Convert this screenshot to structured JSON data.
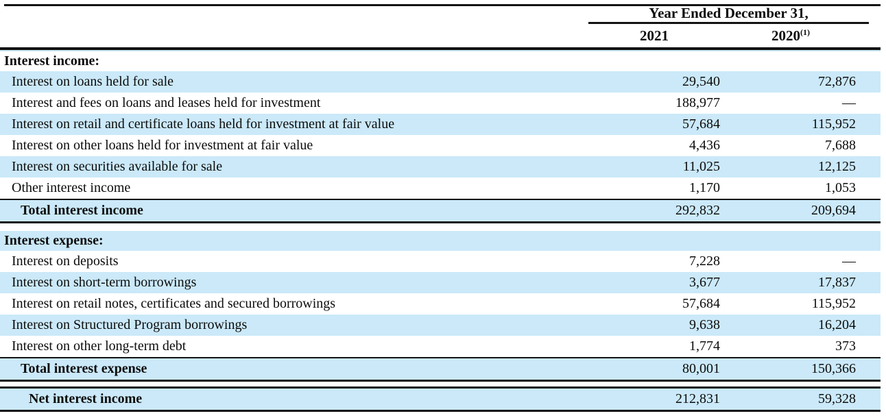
{
  "table": {
    "header": {
      "period_label": "Year Ended December 31,",
      "col_2021": "2021",
      "col_2020": "2020",
      "col_2020_footnote": "(1)"
    },
    "sections": [
      {
        "title": "Interest income:",
        "rows": [
          {
            "label": "Interest on loans held for sale",
            "y2021": "29,540",
            "y2020": "72,876"
          },
          {
            "label": "Interest and fees on loans and leases held for investment",
            "y2021": "188,977",
            "y2020": "—"
          },
          {
            "label": "Interest on retail and certificate loans held for investment at fair value",
            "y2021": "57,684",
            "y2020": "115,952"
          },
          {
            "label": "Interest on other loans held for investment at fair value",
            "y2021": "4,436",
            "y2020": "7,688"
          },
          {
            "label": "Interest on securities available for sale",
            "y2021": "11,025",
            "y2020": "12,125"
          },
          {
            "label": "Other interest income",
            "y2021": "1,170",
            "y2020": "1,053"
          }
        ],
        "total": {
          "label": "Total interest income",
          "y2021": "292,832",
          "y2020": "209,694"
        }
      },
      {
        "title": "Interest expense:",
        "rows": [
          {
            "label": "Interest on deposits",
            "y2021": "7,228",
            "y2020": "—"
          },
          {
            "label": "Interest on short-term borrowings",
            "y2021": "3,677",
            "y2020": "17,837"
          },
          {
            "label": "Interest on retail notes, certificates and secured borrowings",
            "y2021": "57,684",
            "y2020": "115,952"
          },
          {
            "label": "Interest on Structured Program borrowings",
            "y2021": "9,638",
            "y2020": "16,204"
          },
          {
            "label": "Interest on other long-term debt",
            "y2021": "1,774",
            "y2020": "373"
          }
        ],
        "total": {
          "label": "Total interest expense",
          "y2021": "80,001",
          "y2020": "150,366"
        }
      }
    ],
    "net_row": {
      "label": "Net interest income",
      "y2021": "212,831",
      "y2020": "59,328"
    },
    "colors": {
      "row_highlight": "#cbe9f9",
      "rule": "#131313",
      "text": "#0c0c0c",
      "background": "#ffffff"
    }
  }
}
